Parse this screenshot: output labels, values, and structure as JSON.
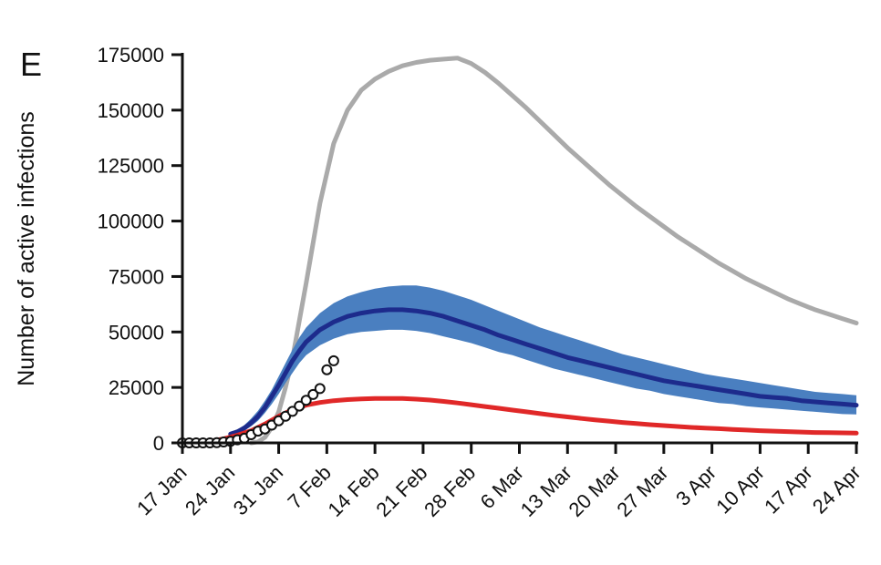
{
  "chart_data": {
    "type": "line",
    "title": "",
    "panel_label": "E",
    "xlabel": "",
    "ylabel": "Number of active infections",
    "ylim": [
      0,
      175000
    ],
    "y_ticks": [
      0,
      25000,
      50000,
      75000,
      100000,
      125000,
      150000,
      175000
    ],
    "x_tick_labels": [
      "17 Jan",
      "24 Jan",
      "31 Jan",
      "7 Feb",
      "14 Feb",
      "21 Feb",
      "28 Feb",
      "6 Mar",
      "13 Mar",
      "20 Mar",
      "27 Mar",
      "3 Apr",
      "10 Apr",
      "17 Apr",
      "24 Apr"
    ],
    "x_day_range": [
      0,
      98
    ],
    "grid": false,
    "colors": {
      "gray": "#aaaaaa",
      "band": "#4a7fc0",
      "navy": "#1d2b8c",
      "red": "#e02828",
      "observed_fill": "#ffffff",
      "observed_stroke": "#111111"
    },
    "series": [
      {
        "style": "gray-line",
        "x": [
          10,
          11,
          12,
          13,
          14,
          15,
          16,
          17,
          18,
          20,
          22,
          24,
          26,
          28,
          30,
          32,
          34,
          36,
          38,
          40,
          42,
          44,
          46,
          48,
          50,
          52,
          53,
          54,
          56,
          58,
          60,
          62,
          64,
          66,
          68,
          70,
          72,
          74,
          76,
          78,
          80,
          82,
          84,
          86,
          88,
          90,
          92,
          94,
          96,
          98
        ],
        "values": [
          0,
          500,
          2500,
          7000,
          14000,
          25000,
          38000,
          55000,
          72000,
          108000,
          135000,
          150000,
          159000,
          164000,
          167500,
          170000,
          171500,
          172500,
          173000,
          173500,
          171000,
          167000,
          162000,
          156500,
          151000,
          145000,
          142000,
          139000,
          133000,
          127500,
          122000,
          116500,
          111500,
          106500,
          102000,
          97500,
          93000,
          89000,
          85000,
          81000,
          77500,
          74000,
          71000,
          68000,
          65000,
          62500,
          60000,
          58000,
          56000,
          54000
        ]
      },
      {
        "style": "band",
        "x": [
          7,
          8,
          9,
          10,
          11,
          12,
          13,
          14,
          15,
          16,
          17,
          18,
          20,
          22,
          24,
          26,
          28,
          30,
          32,
          34,
          36,
          38,
          40,
          42,
          44,
          46,
          48,
          50,
          52,
          54,
          56,
          58,
          60,
          62,
          64,
          66,
          68,
          70,
          72,
          74,
          76,
          78,
          80,
          82,
          84,
          86,
          88,
          90,
          92,
          94,
          96,
          98
        ],
        "upper": [
          4500,
          6000,
          8000,
          11000,
          14500,
          19000,
          24000,
          30000,
          36000,
          42000,
          47500,
          52000,
          58500,
          63000,
          66000,
          68000,
          69500,
          70500,
          71000,
          71000,
          70000,
          68500,
          66500,
          64500,
          62000,
          59500,
          57000,
          54500,
          52000,
          50000,
          48000,
          46000,
          44000,
          42000,
          40000,
          38500,
          37000,
          35500,
          34000,
          32500,
          31000,
          30000,
          29000,
          28000,
          27000,
          26000,
          25000,
          24000,
          23000,
          22500,
          22000,
          21500
        ],
        "lower": [
          3500,
          4200,
          5500,
          7500,
          10000,
          13500,
          17500,
          22000,
          27000,
          31500,
          36000,
          39500,
          44000,
          47000,
          49000,
          50000,
          50500,
          51000,
          51000,
          50500,
          49500,
          48000,
          46500,
          45000,
          43000,
          41000,
          39500,
          37500,
          35500,
          33500,
          32000,
          30500,
          29000,
          27500,
          26000,
          24500,
          23500,
          22000,
          21000,
          20000,
          19000,
          18000,
          17500,
          16500,
          16000,
          15500,
          15000,
          14500,
          14000,
          13500,
          13000,
          12800
        ]
      },
      {
        "style": "navy-line",
        "x": [
          7,
          8,
          9,
          10,
          11,
          12,
          13,
          14,
          15,
          16,
          17,
          18,
          20,
          22,
          24,
          26,
          28,
          30,
          32,
          34,
          36,
          38,
          40,
          42,
          44,
          46,
          48,
          50,
          52,
          54,
          56,
          58,
          60,
          62,
          64,
          66,
          68,
          70,
          72,
          74,
          76,
          78,
          80,
          82,
          84,
          86,
          88,
          90,
          92,
          94,
          96,
          98
        ],
        "values": [
          4000,
          5000,
          6700,
          9000,
          12000,
          16000,
          21000,
          26000,
          31500,
          37000,
          41500,
          45500,
          51000,
          54500,
          57000,
          58500,
          59500,
          60000,
          60000,
          59500,
          58500,
          57000,
          55000,
          53000,
          51000,
          48500,
          46500,
          44500,
          42500,
          40500,
          38500,
          37000,
          35500,
          34000,
          32500,
          31000,
          29500,
          28000,
          27000,
          26000,
          25000,
          24000,
          23000,
          22000,
          21000,
          20500,
          20000,
          19000,
          18500,
          18000,
          17500,
          17000
        ]
      },
      {
        "style": "red-line",
        "x": [
          0,
          2,
          4,
          6,
          8,
          10,
          12,
          14,
          16,
          18,
          20,
          22,
          24,
          26,
          28,
          30,
          32,
          34,
          36,
          38,
          40,
          42,
          44,
          46,
          48,
          50,
          52,
          54,
          56,
          58,
          60,
          62,
          64,
          66,
          68,
          70,
          72,
          74,
          76,
          78,
          80,
          82,
          84,
          86,
          88,
          90,
          92,
          94,
          96,
          98
        ],
        "values": [
          0,
          300,
          800,
          1800,
          3500,
          5500,
          8500,
          12000,
          15000,
          17000,
          18200,
          19000,
          19500,
          19800,
          20000,
          20000,
          20000,
          19700,
          19300,
          18700,
          18000,
          17200,
          16400,
          15600,
          14800,
          14000,
          13200,
          12400,
          11700,
          11000,
          10400,
          9800,
          9200,
          8700,
          8200,
          7800,
          7400,
          7000,
          6700,
          6400,
          6100,
          5800,
          5500,
          5300,
          5100,
          4900,
          4700,
          4600,
          4500,
          4400
        ]
      },
      {
        "style": "observed-points",
        "x": [
          0,
          1,
          2,
          3,
          4,
          5,
          6,
          7,
          8,
          9,
          10,
          11,
          12,
          13,
          14,
          15,
          16,
          17,
          18,
          19,
          20,
          21,
          22
        ],
        "values": [
          0,
          0,
          0,
          0,
          0,
          100,
          400,
          700,
          1400,
          2100,
          3700,
          5300,
          6300,
          8000,
          10000,
          12000,
          14200,
          16600,
          19200,
          21800,
          24500,
          33000,
          37000
        ]
      }
    ]
  }
}
